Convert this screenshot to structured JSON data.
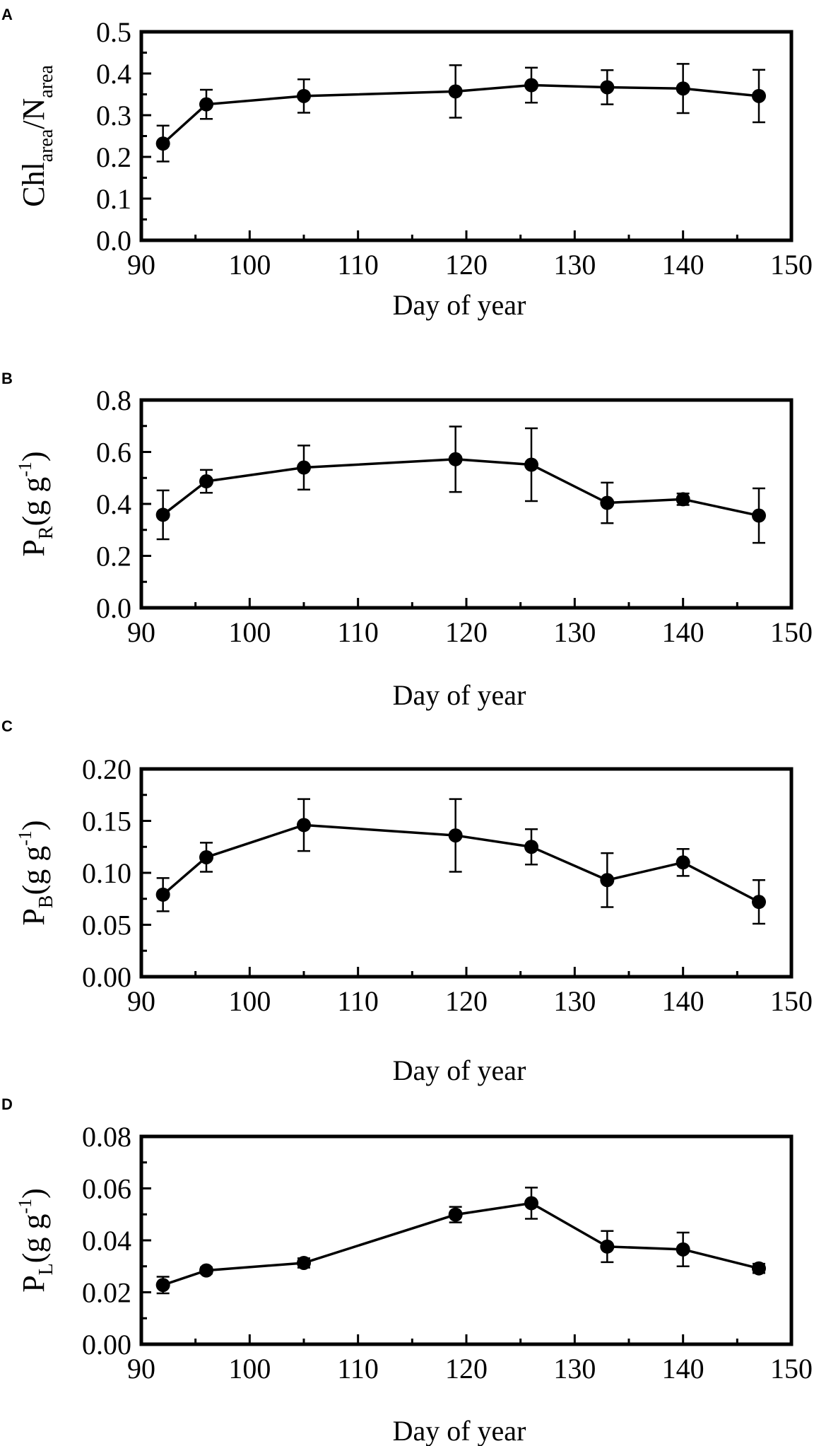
{
  "chart_data": [
    {
      "panel": "A",
      "type": "line",
      "xlabel": "Day of year",
      "ylabel": {
        "base": "Chl",
        "sub1": "area",
        "slash": "/N",
        "sub2": "area"
      },
      "xlim": [
        90,
        150
      ],
      "ylim": [
        0.0,
        0.5
      ],
      "xticks": [
        90,
        100,
        110,
        120,
        130,
        140,
        150
      ],
      "yticks": [
        "0.0",
        "0.1",
        "0.2",
        "0.3",
        "0.4",
        "0.5"
      ],
      "x": [
        92,
        96,
        105,
        119,
        126,
        133,
        140,
        147
      ],
      "y": [
        0.232,
        0.326,
        0.346,
        0.357,
        0.372,
        0.367,
        0.364,
        0.346
      ],
      "err": [
        0.043,
        0.035,
        0.04,
        0.063,
        0.042,
        0.041,
        0.059,
        0.063
      ]
    },
    {
      "panel": "B",
      "type": "line",
      "xlabel": "Day of year",
      "ylabel": {
        "base": "P",
        "sub": "R",
        "open": "(g g",
        "sup": "-1",
        "close": ")"
      },
      "xlim": [
        90,
        150
      ],
      "ylim": [
        0.0,
        0.8
      ],
      "xticks": [
        90,
        100,
        110,
        120,
        130,
        140,
        150
      ],
      "yticks": [
        "0.0",
        "0.2",
        "0.4",
        "0.6",
        "0.8"
      ],
      "x": [
        92,
        96,
        105,
        119,
        126,
        133,
        140,
        147
      ],
      "y": [
        0.358,
        0.487,
        0.54,
        0.572,
        0.551,
        0.404,
        0.418,
        0.355
      ],
      "err": [
        0.094,
        0.044,
        0.085,
        0.126,
        0.14,
        0.078,
        0.022,
        0.105
      ]
    },
    {
      "panel": "C",
      "type": "line",
      "xlabel": "Day of year",
      "ylabel": {
        "base": "P",
        "sub": "B",
        "open": "(g g",
        "sup": "-1",
        "close": ")"
      },
      "xlim": [
        90,
        150
      ],
      "ylim": [
        0.0,
        0.2
      ],
      "xticks": [
        90,
        100,
        110,
        120,
        130,
        140,
        150
      ],
      "yticks": [
        "0.00",
        "0.05",
        "0.10",
        "0.15",
        "0.20"
      ],
      "x": [
        92,
        96,
        105,
        119,
        126,
        133,
        140,
        147
      ],
      "y": [
        0.079,
        0.115,
        0.146,
        0.136,
        0.125,
        0.093,
        0.11,
        0.072
      ],
      "err": [
        0.016,
        0.014,
        0.025,
        0.035,
        0.017,
        0.026,
        0.013,
        0.021
      ]
    },
    {
      "panel": "D",
      "type": "line",
      "xlabel": "Day of year",
      "ylabel": {
        "base": "P",
        "sub": "L",
        "open": "(g g",
        "sup": "-1",
        "close": ")"
      },
      "xlim": [
        90,
        150
      ],
      "ylim": [
        0.0,
        0.08
      ],
      "xticks": [
        90,
        100,
        110,
        120,
        130,
        140,
        150
      ],
      "yticks": [
        "0.00",
        "0.02",
        "0.04",
        "0.06",
        "0.08"
      ],
      "x": [
        92,
        96,
        105,
        119,
        126,
        133,
        140,
        147
      ],
      "y": [
        0.0228,
        0.0284,
        0.0313,
        0.0499,
        0.0543,
        0.0376,
        0.0365,
        0.0292
      ],
      "err": [
        0.0032,
        0.0012,
        0.0018,
        0.003,
        0.006,
        0.006,
        0.0065,
        0.0018
      ]
    }
  ]
}
